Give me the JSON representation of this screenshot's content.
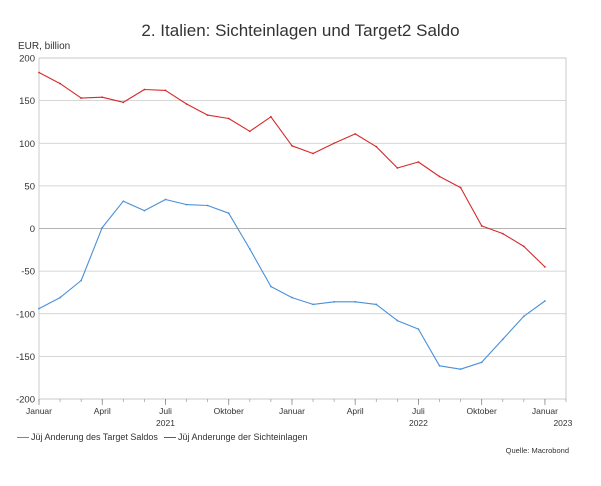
{
  "page": {
    "title": "2. Italien: Sichteinlagen und Target2 Saldo",
    "source": "Quelle: Macrobond"
  },
  "chart_data": {
    "type": "line",
    "title": "2. Italien: Sichteinlagen und Target2 Saldo",
    "ylabel": "EUR, billion",
    "xlabel": "",
    "ylim": [
      -200,
      200
    ],
    "yticks": [
      200,
      150,
      100,
      50,
      0,
      -50,
      -100,
      -150,
      -200
    ],
    "grid": true,
    "legend_position": "bottom",
    "x_range": [
      "2021-01",
      "2023-02"
    ],
    "x_ticks": [
      {
        "month": "2021-01",
        "label": "Januar",
        "year": ""
      },
      {
        "month": "2021-04",
        "label": "April",
        "year": ""
      },
      {
        "month": "2021-07",
        "label": "Juli",
        "year": "2021"
      },
      {
        "month": "2021-10",
        "label": "Oktober",
        "year": ""
      },
      {
        "month": "2022-01",
        "label": "Januar",
        "year": ""
      },
      {
        "month": "2022-04",
        "label": "April",
        "year": ""
      },
      {
        "month": "2022-07",
        "label": "Juli",
        "year": "2022"
      },
      {
        "month": "2022-10",
        "label": "Oktober",
        "year": ""
      },
      {
        "month": "2023-01",
        "label": "Januar",
        "year": "2023"
      }
    ],
    "x": [
      "2021-01",
      "2021-02",
      "2021-03",
      "2021-04",
      "2021-05",
      "2021-06",
      "2021-07",
      "2021-08",
      "2021-09",
      "2021-10",
      "2021-11",
      "2021-12",
      "2022-01",
      "2022-02",
      "2022-03",
      "2022-04",
      "2022-05",
      "2022-06",
      "2022-07",
      "2022-08",
      "2022-09",
      "2022-10",
      "2022-11",
      "2022-12",
      "2023-01"
    ],
    "series": [
      {
        "name": "Jüj Anderung des Target Saldos",
        "color": "#4a90d9",
        "values": [
          -94,
          -81,
          -61,
          1,
          32,
          21,
          34,
          28,
          27,
          18,
          -24,
          -68,
          -81,
          -89,
          -86,
          -86,
          -89,
          -108,
          -118,
          -161,
          -165,
          -157,
          -130,
          -103,
          -85
        ]
      },
      {
        "name": "Jüj Anderunge der Sichteinlagen",
        "color": "#d62a2a",
        "values": [
          183,
          170,
          153,
          154,
          148,
          163,
          162,
          146,
          133,
          129,
          114,
          131,
          97,
          88,
          100,
          111,
          96,
          71,
          78,
          61,
          48,
          3,
          -6,
          -21,
          -45
        ]
      }
    ]
  }
}
